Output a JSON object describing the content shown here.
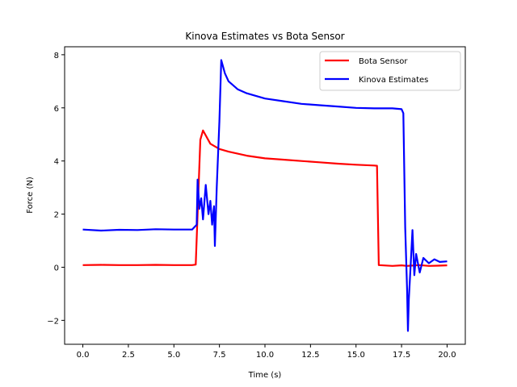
{
  "chart_data": {
    "type": "line",
    "title": "Kinova Estimates vs Bota Sensor",
    "xlabel": "Time (s)",
    "ylabel": "Force (N)",
    "xlim": [
      -1.0,
      21.0
    ],
    "ylim": [
      -2.9,
      8.3
    ],
    "xticks": [
      0.0,
      2.5,
      5.0,
      7.5,
      10.0,
      12.5,
      15.0,
      17.5,
      20.0
    ],
    "xtick_labels": [
      "0.0",
      "2.5",
      "5.0",
      "7.5",
      "10.0",
      "12.5",
      "15.0",
      "17.5",
      "20.0"
    ],
    "yticks": [
      -2,
      0,
      2,
      4,
      6,
      8
    ],
    "ytick_labels": [
      "−2",
      "0",
      "2",
      "4",
      "6",
      "8"
    ],
    "grid": false,
    "legend_position": "top-right",
    "series": [
      {
        "name": "Bota Sensor",
        "color": "#ff0000",
        "x": [
          0.0,
          1.0,
          2.0,
          3.0,
          4.0,
          5.0,
          6.0,
          6.2,
          6.3,
          6.45,
          6.6,
          7.0,
          7.5,
          8.0,
          9.0,
          10.0,
          11.0,
          12.0,
          13.0,
          14.0,
          15.0,
          16.0,
          16.15,
          16.25,
          17.0,
          17.5,
          17.8,
          18.0,
          18.5,
          19.0,
          19.5,
          20.0
        ],
        "y": [
          0.08,
          0.09,
          0.08,
          0.08,
          0.09,
          0.08,
          0.08,
          0.1,
          2.0,
          4.8,
          5.15,
          4.65,
          4.45,
          4.35,
          4.2,
          4.1,
          4.05,
          4.0,
          3.95,
          3.9,
          3.86,
          3.83,
          3.82,
          0.08,
          0.05,
          0.07,
          0.05,
          0.06,
          0.08,
          0.05,
          0.06,
          0.07
        ]
      },
      {
        "name": "Kinova Estimates",
        "color": "#0000ff",
        "x": [
          0.0,
          1.0,
          2.0,
          3.0,
          4.0,
          5.0,
          6.0,
          6.25,
          6.3,
          6.4,
          6.5,
          6.6,
          6.75,
          6.9,
          7.0,
          7.1,
          7.2,
          7.25,
          7.35,
          7.5,
          7.6,
          7.8,
          8.0,
          8.5,
          9.0,
          10.0,
          11.0,
          12.0,
          13.0,
          14.0,
          15.0,
          16.0,
          17.0,
          17.5,
          17.6,
          17.7,
          17.8,
          17.85,
          17.9,
          18.0,
          18.1,
          18.2,
          18.3,
          18.5,
          18.7,
          19.0,
          19.3,
          19.6,
          20.0
        ],
        "y": [
          1.42,
          1.38,
          1.41,
          1.4,
          1.43,
          1.42,
          1.42,
          1.6,
          3.3,
          2.2,
          2.6,
          1.8,
          3.1,
          2.0,
          2.5,
          1.6,
          2.3,
          0.8,
          3.0,
          5.5,
          7.8,
          7.3,
          7.0,
          6.7,
          6.55,
          6.35,
          6.25,
          6.15,
          6.1,
          6.05,
          6.0,
          5.98,
          5.98,
          5.95,
          5.8,
          1.5,
          -0.8,
          -2.4,
          -1.2,
          0.1,
          1.4,
          -0.3,
          0.5,
          -0.2,
          0.35,
          0.15,
          0.3,
          0.2,
          0.22
        ]
      }
    ]
  }
}
